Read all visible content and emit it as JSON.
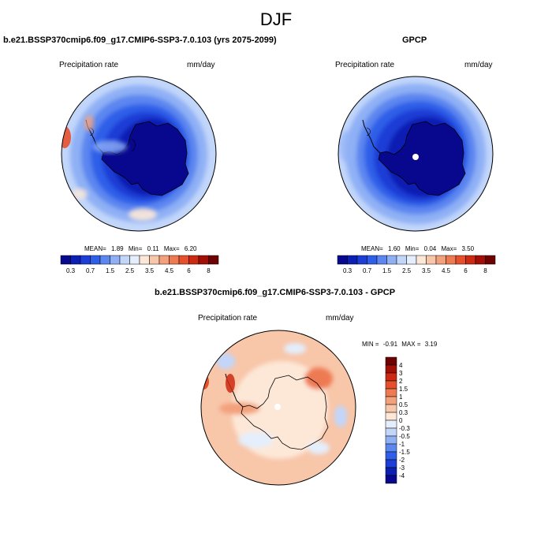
{
  "main_title": "DJF",
  "chart_data": [
    {
      "type": "heatmap",
      "panel": "model",
      "title": "b.e21.BSSP370cmip6.f09_g17.CMIP6-SSP3-7.0.103 (yrs 2075-2099)",
      "left_label": "Precipitation rate",
      "units": "mm/day",
      "projection": "south-polar-stereographic",
      "stats": {
        "mean_label": "MEAN=",
        "mean": "1.89",
        "min_label": "Min=",
        "min": "0.11",
        "max_label": "Max=",
        "max": "6.20"
      },
      "levels": [
        0.3,
        0.5,
        0.7,
        1.0,
        1.5,
        2.0,
        2.5,
        3.0,
        3.5,
        4.0,
        4.5,
        5.0,
        6.0,
        7.0,
        8.0
      ],
      "tick_labels": [
        "0.3",
        "0.7",
        "1.5",
        "2.5",
        "3.5",
        "4.5",
        "6",
        "8"
      ],
      "palette": [
        "#08088f",
        "#0b1fb3",
        "#1d3ed6",
        "#2f5fe8",
        "#5c86f0",
        "#8fb0f5",
        "#c2d6fa",
        "#e4eefc",
        "#fde8d8",
        "#f8c6a9",
        "#f3a07c",
        "#ee7a52",
        "#e6502c",
        "#cc2a12",
        "#a10f06",
        "#6e0202"
      ],
      "field_values": {
        "ocean_far": 1.5,
        "ocean_mid": 1.0,
        "coastal": 0.5,
        "interior": 0.2,
        "drake_passage": 5.5
      }
    },
    {
      "type": "heatmap",
      "panel": "observations",
      "title": "GPCP",
      "left_label": "Precipitation rate",
      "units": "mm/day",
      "projection": "south-polar-stereographic",
      "stats": {
        "mean_label": "MEAN=",
        "mean": "1.60",
        "min_label": "Min=",
        "min": "0.04",
        "max_label": "Max=",
        "max": "3.50"
      },
      "levels": [
        0.3,
        0.5,
        0.7,
        1.0,
        1.5,
        2.0,
        2.5,
        3.0,
        3.5,
        4.0,
        4.5,
        5.0,
        6.0,
        7.0,
        8.0
      ],
      "tick_labels": [
        "0.3",
        "0.7",
        "1.5",
        "2.5",
        "3.5",
        "4.5",
        "6",
        "8"
      ],
      "palette": [
        "#08088f",
        "#0b1fb3",
        "#1d3ed6",
        "#2f5fe8",
        "#5c86f0",
        "#8fb0f5",
        "#c2d6fa",
        "#e4eefc",
        "#fde8d8",
        "#f8c6a9",
        "#f3a07c",
        "#ee7a52",
        "#e6502c",
        "#cc2a12",
        "#a10f06",
        "#6e0202"
      ],
      "field_values": {
        "ocean_far": 1.5,
        "ocean_mid": 1.0,
        "coastal": 0.5,
        "interior": 0.1,
        "drake_passage": 2.5
      }
    },
    {
      "type": "heatmap",
      "panel": "difference",
      "title": "b.e21.BSSP370cmip6.f09_g17.CMIP6-SSP3-7.0.103 - GPCP",
      "left_label": "Precipitation rate",
      "units": "mm/day",
      "projection": "south-polar-stereographic",
      "stats": {
        "min_label": "MIN =",
        "min": "-0.91",
        "max_label": "MAX =",
        "max": "3.19"
      },
      "levels": [
        -4,
        -3,
        -2,
        -1.5,
        -1,
        -0.5,
        -0.3,
        0,
        0.3,
        0.5,
        1,
        1.5,
        2,
        3,
        4
      ],
      "tick_labels": [
        "4",
        "3",
        "2",
        "1.5",
        "1",
        "0.5",
        "0.3",
        "0",
        "-0.3",
        "-0.5",
        "-1",
        "-1.5",
        "-2",
        "-3",
        "-4"
      ],
      "palette": [
        "#6e0202",
        "#a10f06",
        "#cc2a12",
        "#e6502c",
        "#ee7a52",
        "#f3a07c",
        "#f8c6a9",
        "#fde8d8",
        "#e4eefc",
        "#c2d6fa",
        "#8fb0f5",
        "#5c86f0",
        "#2f5fe8",
        "#1d3ed6",
        "#0b1fb3",
        "#08088f"
      ],
      "field_values": {
        "ocean_far": 0.4,
        "ocean_mid": 0.3,
        "interior": 0.1,
        "drake_passage": 3.0,
        "weddell": 0.8,
        "east_coast": 1.2
      }
    }
  ]
}
